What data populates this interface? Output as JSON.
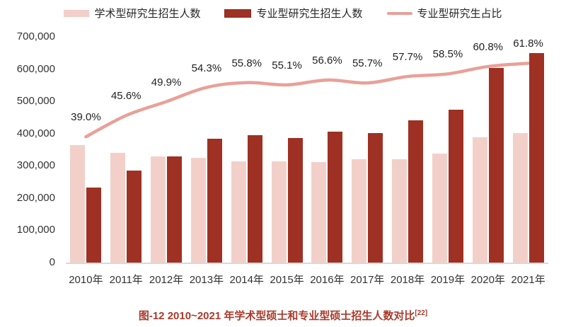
{
  "legend": {
    "items": [
      {
        "label": "学术型研究生招生人数",
        "swatch": "academic-bar-swatch"
      },
      {
        "label": "专业型研究生招生人数",
        "swatch": "professional-bar-swatch"
      },
      {
        "label": "专业型研究生占比",
        "swatch": "ratio-line-swatch"
      }
    ]
  },
  "chart_data": {
    "type": "bar",
    "categories": [
      "2010年",
      "2011年",
      "2012年",
      "2013年",
      "2014年",
      "2015年",
      "2016年",
      "2017年",
      "2018年",
      "2019年",
      "2020年",
      "2021年"
    ],
    "series": [
      {
        "name": "学术型研究生招生人数",
        "type": "bar",
        "color": "#F2D0C9",
        "values": [
          365000,
          340000,
          330000,
          324000,
          313000,
          313000,
          312000,
          320000,
          321000,
          337000,
          389000,
          402000
        ]
      },
      {
        "name": "专业型研究生招生人数",
        "type": "bar",
        "color": "#9E3123",
        "values": [
          233000,
          285000,
          329000,
          385000,
          395000,
          386000,
          407000,
          402000,
          440000,
          475000,
          603000,
          650000
        ]
      },
      {
        "name": "专业型研究生占比",
        "type": "line",
        "color": "#E9A098",
        "axis": "secondary",
        "unit": "%",
        "values": [
          39.0,
          45.6,
          49.9,
          54.3,
          55.8,
          55.1,
          56.6,
          55.7,
          57.7,
          58.5,
          60.8,
          61.8
        ],
        "point_labels": [
          "39.0%",
          "45.6%",
          "49.9%",
          "54.3%",
          "55.8%",
          "55.1%",
          "56.6%",
          "55.7%",
          "57.7%",
          "58.5%",
          "60.8%",
          "61.8%"
        ]
      }
    ],
    "ylim": [
      0,
      700000
    ],
    "ytick_labels": [
      "0",
      "100,000",
      "200,000",
      "300,000",
      "400,000",
      "500,000",
      "600,000",
      "700,000"
    ],
    "ytick_values": [
      0,
      100000,
      200000,
      300000,
      400000,
      500000,
      600000,
      700000
    ],
    "secondary_ylim": [
      0,
      70
    ],
    "grid": false,
    "legend_position": "top"
  },
  "caption": {
    "text": "图-12 2010~2021 年学术型硕士和专业型硕士招生人数对比",
    "superscript": "[22]"
  },
  "colors": {
    "academic_bar": "#F2D0C9",
    "professional_bar": "#9E3123",
    "ratio_line": "#E9A098",
    "caption_text": "#A93A2B",
    "axis_line": "#D9D9D9",
    "tick_text": "#333333",
    "data_label_text": "#1F1F1F"
  }
}
